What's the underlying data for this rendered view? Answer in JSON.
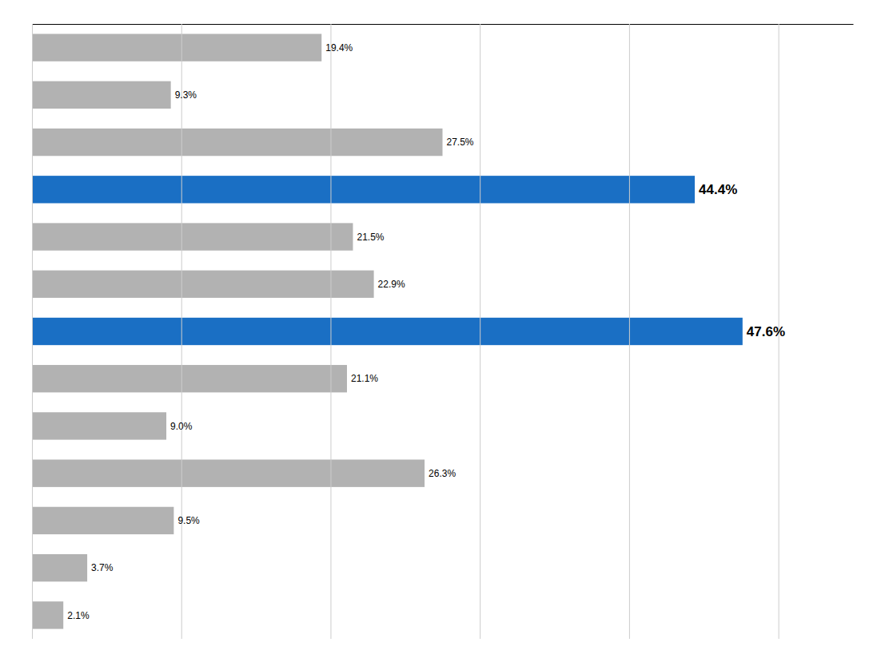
{
  "chart_data": {
    "type": "bar",
    "orientation": "horizontal",
    "categories": [
      null,
      null,
      null,
      null,
      null,
      null,
      null,
      null,
      null,
      null,
      null,
      null,
      null
    ],
    "values": [
      19.4,
      9.3,
      27.5,
      44.4,
      21.5,
      22.9,
      47.6,
      21.1,
      9.0,
      26.3,
      9.5,
      3.7,
      2.1
    ],
    "value_labels": [
      "19.4%",
      "9.3%",
      "27.5%",
      "44.4%",
      "21.5%",
      "22.9%",
      "47.6%",
      "21.1%",
      "9.0%",
      "26.3%",
      "9.5%",
      "3.7%",
      "2.1%"
    ],
    "colors": [
      "#b2b2b2",
      "#b2b2b2",
      "#b2b2b2",
      "#1a6fc4",
      "#b2b2b2",
      "#b2b2b2",
      "#1a6fc4",
      "#b2b2b2",
      "#b2b2b2",
      "#b2b2b2",
      "#b2b2b2",
      "#b2b2b2",
      "#b2b2b2"
    ],
    "xlim": [
      0,
      55
    ],
    "xticks": [
      0,
      10,
      20,
      30,
      40,
      50
    ],
    "grid": true,
    "data_labels": true,
    "tick_labels": false
  }
}
